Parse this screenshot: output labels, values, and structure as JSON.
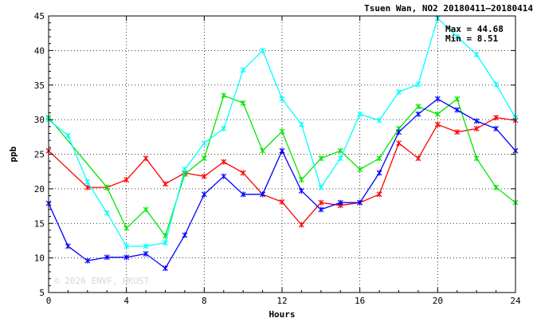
{
  "chart_data": {
    "type": "line",
    "title": "Tsuen Wan, NO2 20180411–20180414",
    "xlabel": "Hours",
    "ylabel": "ppb",
    "xlim": [
      0,
      24
    ],
    "ylim": [
      5,
      45
    ],
    "x_ticks": [
      "0",
      "4",
      "8",
      "12",
      "16",
      "20",
      "24"
    ],
    "y_ticks": [
      "5",
      "10",
      "15",
      "20",
      "25",
      "30",
      "35",
      "40",
      "45"
    ],
    "grid": true,
    "stats": {
      "max_label": "Max = 44.68",
      "min_label": "Min =  8.51"
    },
    "watermark": "© 2026  ENVF, HKUST",
    "x": [
      0,
      1,
      2,
      3,
      4,
      5,
      6,
      7,
      8,
      9,
      10,
      11,
      12,
      13,
      14,
      15,
      16,
      17,
      18,
      19,
      20,
      21,
      22,
      23,
      24
    ],
    "series": [
      {
        "color": "#ff0000",
        "values": [
          25.5,
          null,
          20.2,
          20.2,
          21.3,
          24.4,
          20.7,
          22.3,
          21.8,
          23.9,
          22.3,
          19.2,
          18.1,
          14.8,
          18.0,
          17.6,
          18.0,
          19.2,
          26.6,
          24.4,
          29.3,
          28.2,
          28.7,
          30.3,
          29.9
        ]
      },
      {
        "color": "#00e600",
        "values": [
          30.3,
          null,
          null,
          20.2,
          14.3,
          17.0,
          13.2,
          22.1,
          24.4,
          33.5,
          32.4,
          25.5,
          28.3,
          21.3,
          24.4,
          25.5,
          22.8,
          24.4,
          28.7,
          31.9,
          30.8,
          33.0,
          24.4,
          20.2,
          18.0
        ]
      },
      {
        "color": "#00ffff",
        "values": [
          30.0,
          27.7,
          21.0,
          16.5,
          11.7,
          11.7,
          12.2,
          22.8,
          26.6,
          28.7,
          37.2,
          40.0,
          33.0,
          29.3,
          20.2,
          24.4,
          30.8,
          29.9,
          34.0,
          35.1,
          44.68,
          42.0,
          39.4,
          35.1,
          30.3
        ]
      },
      {
        "color": "#0000ff",
        "values": [
          17.9,
          11.7,
          9.6,
          10.1,
          10.1,
          10.6,
          8.51,
          13.3,
          19.2,
          21.8,
          19.2,
          19.2,
          25.5,
          19.7,
          17.0,
          18.0,
          18.0,
          22.3,
          28.2,
          30.8,
          33.0,
          31.4,
          29.8,
          28.7,
          25.5
        ]
      }
    ]
  }
}
